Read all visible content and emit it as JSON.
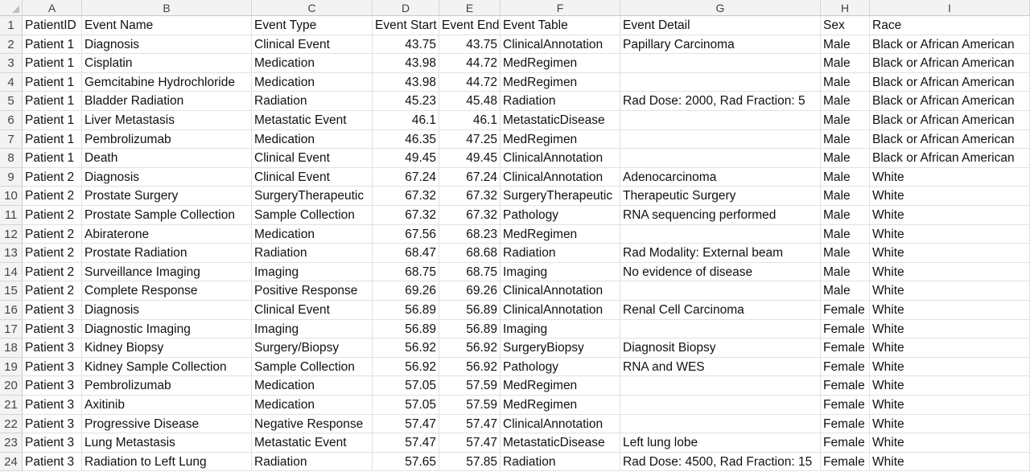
{
  "columns": [
    "A",
    "B",
    "C",
    "D",
    "E",
    "F",
    "G",
    "H",
    "I"
  ],
  "rows": [
    [
      "PatientID",
      "Event Name",
      "Event Type",
      "Event Start",
      "Event End",
      "Event Table",
      "Event Detail",
      "Sex",
      "Race"
    ],
    [
      "Patient 1",
      "Diagnosis",
      "Clinical Event",
      "43.75",
      "43.75",
      "ClinicalAnnotation",
      "Papillary Carcinoma",
      "Male",
      "Black or African American"
    ],
    [
      "Patient 1",
      "Cisplatin",
      "Medication",
      "43.98",
      "44.72",
      "MedRegimen",
      "",
      "Male",
      "Black or African American"
    ],
    [
      "Patient 1",
      "Gemcitabine Hydrochloride",
      "Medication",
      "43.98",
      "44.72",
      "MedRegimen",
      "",
      "Male",
      "Black or African American"
    ],
    [
      "Patient 1",
      "Bladder Radiation",
      "Radiation",
      "45.23",
      "45.48",
      "Radiation",
      "Rad Dose: 2000, Rad Fraction: 5",
      "Male",
      "Black or African American"
    ],
    [
      "Patient 1",
      "Liver Metastasis",
      "Metastatic Event",
      "46.1",
      "46.1",
      "MetastaticDisease",
      "",
      "Male",
      "Black or African American"
    ],
    [
      "Patient 1",
      "Pembrolizumab",
      "Medication",
      "46.35",
      "47.25",
      "MedRegimen",
      "",
      "Male",
      "Black or African American"
    ],
    [
      "Patient 1",
      "Death",
      "Clinical Event",
      "49.45",
      "49.45",
      "ClinicalAnnotation",
      "",
      "Male",
      "Black or African American"
    ],
    [
      "Patient 2",
      "Diagnosis",
      "Clinical Event",
      "67.24",
      "67.24",
      "ClinicalAnnotation",
      "Adenocarcinoma",
      "Male",
      "White"
    ],
    [
      "Patient 2",
      "Prostate Surgery",
      "SurgeryTherapeutic",
      "67.32",
      "67.32",
      "SurgeryTherapeutic",
      "Therapeutic Surgery",
      "Male",
      "White"
    ],
    [
      "Patient 2",
      "Prostate Sample Collection",
      "Sample Collection",
      "67.32",
      "67.32",
      "Pathology",
      "RNA sequencing performed",
      "Male",
      "White"
    ],
    [
      "Patient 2",
      "Abiraterone",
      "Medication",
      "67.56",
      "68.23",
      "MedRegimen",
      "",
      "Male",
      "White"
    ],
    [
      "Patient 2",
      "Prostate Radiation",
      "Radiation",
      "68.47",
      "68.68",
      "Radiation",
      "Rad Modality: External beam",
      "Male",
      "White"
    ],
    [
      "Patient 2",
      "Surveillance Imaging",
      "Imaging",
      "68.75",
      "68.75",
      "Imaging",
      "No evidence of disease",
      "Male",
      "White"
    ],
    [
      "Patient 2",
      "Complete Response",
      "Positive Response",
      "69.26",
      "69.26",
      "ClinicalAnnotation",
      "",
      "Male",
      "White"
    ],
    [
      "Patient 3",
      "Diagnosis",
      "Clinical Event",
      "56.89",
      "56.89",
      "ClinicalAnnotation",
      "Renal Cell Carcinoma",
      "Female",
      "White"
    ],
    [
      "Patient 3",
      "Diagnostic Imaging",
      "Imaging",
      "56.89",
      "56.89",
      "Imaging",
      "",
      "Female",
      "White"
    ],
    [
      "Patient 3",
      "Kidney Biopsy",
      "Surgery/Biopsy",
      "56.92",
      "56.92",
      "SurgeryBiopsy",
      "Diagnosit Biopsy",
      "Female",
      "White"
    ],
    [
      "Patient 3",
      "Kidney Sample Collection",
      "Sample Collection",
      "56.92",
      "56.92",
      "Pathology",
      "RNA and WES",
      "Female",
      "White"
    ],
    [
      "Patient 3",
      "Pembrolizumab",
      "Medication",
      "57.05",
      "57.59",
      "MedRegimen",
      "",
      "Female",
      "White"
    ],
    [
      "Patient 3",
      "Axitinib",
      "Medication",
      "57.05",
      "57.59",
      "MedRegimen",
      "",
      "Female",
      "White"
    ],
    [
      "Patient 3",
      "Progressive Disease",
      "Negative Response",
      "57.47",
      "57.47",
      "ClinicalAnnotation",
      "",
      "Female",
      "White"
    ],
    [
      "Patient 3",
      "Lung Metastasis",
      "Metastatic Event",
      "57.47",
      "57.47",
      "MetastaticDisease",
      "Left lung lobe",
      "Female",
      "White"
    ],
    [
      "Patient 3",
      "Radiation to Left Lung",
      "Radiation",
      "57.65",
      "57.85",
      "Radiation",
      "Rad Dose: 4500, Rad Fraction: 15",
      "Female",
      "White"
    ]
  ]
}
